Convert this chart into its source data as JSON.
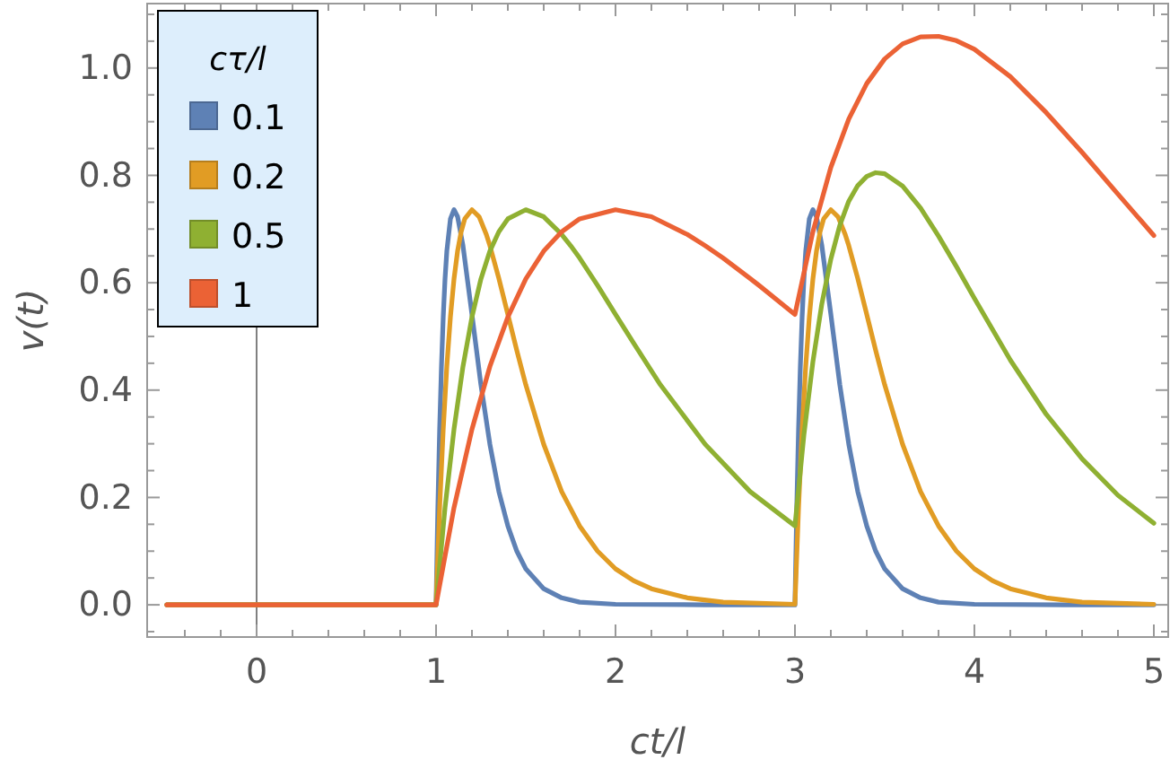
{
  "chart_data": {
    "type": "line",
    "xlabel": "ct/l",
    "ylabel": "v(t)",
    "legend_title": "cτ/l",
    "legend": "top left",
    "xlim": [
      -0.61,
      5.08
    ],
    "ylim": [
      -0.06,
      1.12
    ],
    "xticks": [
      {
        "value": -0.4,
        "label": null
      },
      {
        "value": -0.2,
        "label": null
      },
      0,
      {
        "value": 0.2,
        "label": null
      },
      {
        "value": 0.4,
        "label": null
      },
      {
        "value": 0.6,
        "label": null
      },
      {
        "value": 0.8,
        "label": null
      },
      1,
      {
        "value": 1.2,
        "label": null
      },
      {
        "value": 1.4,
        "label": null
      },
      {
        "value": 1.6,
        "label": null
      },
      {
        "value": 1.8,
        "label": null
      },
      2,
      {
        "value": 2.2,
        "label": null
      },
      {
        "value": 2.4,
        "label": null
      },
      {
        "value": 2.6,
        "label": null
      },
      {
        "value": 2.8,
        "label": null
      },
      3,
      {
        "value": 3.2,
        "label": null
      },
      {
        "value": 3.4,
        "label": null
      },
      {
        "value": 3.6,
        "label": null
      },
      {
        "value": 3.8,
        "label": null
      },
      4,
      {
        "value": 4.2,
        "label": null
      },
      {
        "value": 4.4,
        "label": null
      },
      {
        "value": 4.6,
        "label": null
      },
      {
        "value": 4.8,
        "label": null
      },
      5
    ],
    "yticks": [
      {
        "value": -0.05,
        "label": null
      },
      {
        "value": 0,
        "label": "0.0"
      },
      {
        "value": 0.05,
        "label": null
      },
      {
        "value": 0.1,
        "label": null
      },
      {
        "value": 0.15,
        "label": null
      },
      {
        "value": 0.2,
        "label": "0.2"
      },
      {
        "value": 0.25,
        "label": null
      },
      {
        "value": 0.3,
        "label": null
      },
      {
        "value": 0.35,
        "label": null
      },
      {
        "value": 0.4,
        "label": "0.4"
      },
      {
        "value": 0.45,
        "label": null
      },
      {
        "value": 0.5,
        "label": null
      },
      {
        "value": 0.55,
        "label": null
      },
      {
        "value": 0.6,
        "label": "0.6"
      },
      {
        "value": 0.65,
        "label": null
      },
      {
        "value": 0.7,
        "label": null
      },
      {
        "value": 0.75,
        "label": null
      },
      {
        "value": 0.8,
        "label": "0.8"
      },
      {
        "value": 0.85,
        "label": null
      },
      {
        "value": 0.9,
        "label": null
      },
      {
        "value": 0.95,
        "label": null
      },
      {
        "value": 1,
        "label": "1.0"
      },
      {
        "value": 1.05,
        "label": null
      },
      {
        "value": 1.1,
        "label": null
      }
    ],
    "ref_lines": [
      {
        "axis": "x",
        "value": 0,
        "color": "#808080"
      }
    ],
    "series": [
      {
        "name": "0.1",
        "color": "#5e81b5",
        "x": [
          -0.5,
          1,
          1.01,
          1.02,
          1.03,
          1.04,
          1.05,
          1.06,
          1.08,
          1.1,
          1.12,
          1.15,
          1.2,
          1.25,
          1.3,
          1.35,
          1.4,
          1.45,
          1.5,
          1.6,
          1.7,
          1.8,
          2,
          2.5,
          3,
          3.01,
          3.02,
          3.03,
          3.04,
          3.05,
          3.06,
          3.08,
          3.1,
          3.12,
          3.15,
          3.2,
          3.25,
          3.3,
          3.35,
          3.4,
          3.45,
          3.5,
          3.6,
          3.7,
          3.8,
          4,
          4.5,
          5
        ],
        "values": [
          0,
          0,
          0.181,
          0.327,
          0.444,
          0.536,
          0.607,
          0.659,
          0.719,
          0.736,
          0.723,
          0.669,
          0.541,
          0.41,
          0.299,
          0.211,
          0.147,
          0.1,
          0.067,
          0.03,
          0.013,
          0.005,
          0.001,
          0,
          0,
          0.181,
          0.327,
          0.444,
          0.536,
          0.607,
          0.659,
          0.719,
          0.736,
          0.723,
          0.669,
          0.541,
          0.41,
          0.299,
          0.211,
          0.147,
          0.1,
          0.067,
          0.03,
          0.013,
          0.005,
          0.001,
          0,
          0
        ]
      },
      {
        "name": "0.2",
        "color": "#e19c24",
        "x": [
          -0.5,
          1,
          1.02,
          1.04,
          1.06,
          1.08,
          1.1,
          1.12,
          1.14,
          1.16,
          1.2,
          1.24,
          1.28,
          1.3,
          1.35,
          1.4,
          1.45,
          1.5,
          1.6,
          1.7,
          1.8,
          1.9,
          2,
          2.1,
          2.2,
          2.4,
          2.6,
          3,
          3.02,
          3.04,
          3.06,
          3.08,
          3.1,
          3.12,
          3.14,
          3.16,
          3.2,
          3.24,
          3.28,
          3.3,
          3.35,
          3.4,
          3.45,
          3.5,
          3.6,
          3.7,
          3.8,
          3.9,
          4,
          4.1,
          4.2,
          4.4,
          4.6,
          5
        ],
        "values": [
          0,
          0,
          0.181,
          0.327,
          0.444,
          0.536,
          0.607,
          0.659,
          0.695,
          0.719,
          0.736,
          0.723,
          0.69,
          0.669,
          0.608,
          0.541,
          0.474,
          0.41,
          0.299,
          0.211,
          0.147,
          0.1,
          0.067,
          0.045,
          0.03,
          0.013,
          0.005,
          0.001,
          0.181,
          0.327,
          0.444,
          0.536,
          0.607,
          0.659,
          0.695,
          0.719,
          0.736,
          0.723,
          0.69,
          0.669,
          0.608,
          0.541,
          0.474,
          0.41,
          0.299,
          0.211,
          0.147,
          0.1,
          0.067,
          0.045,
          0.03,
          0.013,
          0.005,
          0.001
        ]
      },
      {
        "name": "0.5",
        "color": "#8fb032",
        "x": [
          -0.5,
          1,
          1.05,
          1.1,
          1.15,
          1.2,
          1.25,
          1.3,
          1.35,
          1.4,
          1.5,
          1.6,
          1.7,
          1.75,
          1.8,
          1.9,
          2,
          2.1,
          2.25,
          2.5,
          2.75,
          3,
          3.05,
          3.1,
          3.15,
          3.2,
          3.25,
          3.3,
          3.35,
          3.4,
          3.45,
          3.5,
          3.6,
          3.7,
          3.8,
          3.9,
          4,
          4.2,
          4.4,
          4.6,
          4.8,
          5
        ],
        "values": [
          0,
          0,
          0.181,
          0.327,
          0.444,
          0.536,
          0.607,
          0.659,
          0.695,
          0.719,
          0.736,
          0.723,
          0.69,
          0.669,
          0.646,
          0.595,
          0.541,
          0.488,
          0.41,
          0.299,
          0.211,
          0.147,
          0.317,
          0.453,
          0.561,
          0.644,
          0.707,
          0.752,
          0.781,
          0.798,
          0.805,
          0.803,
          0.78,
          0.739,
          0.687,
          0.63,
          0.571,
          0.456,
          0.355,
          0.272,
          0.204,
          0.152
        ]
      },
      {
        "name": "1",
        "color": "#eb6235",
        "x": [
          -0.5,
          1,
          1.1,
          1.2,
          1.3,
          1.4,
          1.5,
          1.6,
          1.7,
          1.8,
          2,
          2.2,
          2.4,
          2.5,
          2.6,
          2.75,
          2.8,
          3,
          3.1,
          3.2,
          3.3,
          3.4,
          3.5,
          3.6,
          3.7,
          3.8,
          3.9,
          4,
          4.2,
          4.4,
          4.6,
          4.8,
          5
        ],
        "values": [
          0,
          0,
          0.181,
          0.327,
          0.444,
          0.536,
          0.607,
          0.659,
          0.695,
          0.719,
          0.736,
          0.723,
          0.69,
          0.669,
          0.646,
          0.608,
          0.595,
          0.541,
          0.695,
          0.815,
          0.905,
          0.971,
          1.017,
          1.045,
          1.058,
          1.059,
          1.051,
          1.035,
          0.984,
          0.917,
          0.843,
          0.765,
          0.688
        ]
      }
    ]
  }
}
